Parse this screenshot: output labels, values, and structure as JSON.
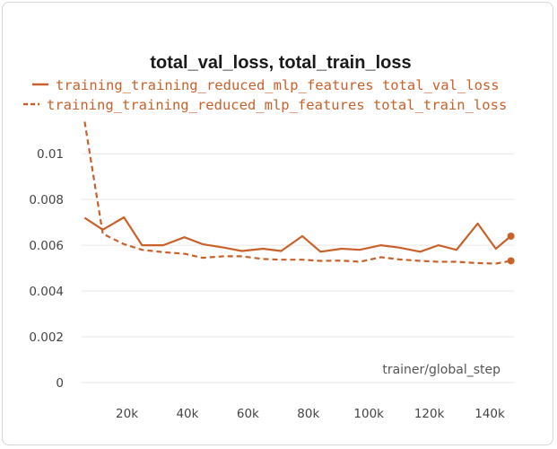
{
  "chart_data": {
    "type": "line",
    "title": "total_val_loss, total_train_loss",
    "xlabel": "trainer/global_step",
    "ylabel": "",
    "xlim": [
      5000,
      148000
    ],
    "ylim": [
      0,
      0.0115
    ],
    "x_ticks": [
      20000,
      40000,
      60000,
      80000,
      100000,
      120000,
      140000
    ],
    "x_tick_labels": [
      "20k",
      "40k",
      "60k",
      "80k",
      "100k",
      "120k",
      "140k"
    ],
    "y_ticks": [
      0,
      0.002,
      0.004,
      0.006,
      0.008,
      0.01
    ],
    "y_tick_labels": [
      "0",
      "0.002",
      "0.004",
      "0.006",
      "0.008",
      "0.01"
    ],
    "grid": true,
    "legend_position": "top",
    "series": [
      {
        "name": "training_training_reduced_mlp_features total_val_loss",
        "style": "solid",
        "color": "#c9612a",
        "x": [
          6000,
          12000,
          19000,
          25000,
          32000,
          39000,
          45000,
          52000,
          58000,
          65000,
          71000,
          78000,
          84000,
          91000,
          97000,
          104000,
          110000,
          117000,
          123000,
          129000,
          136000,
          142000,
          147000
        ],
        "y": [
          0.0072,
          0.00668,
          0.00722,
          0.006,
          0.006,
          0.00635,
          0.00605,
          0.0059,
          0.00575,
          0.00585,
          0.00575,
          0.0064,
          0.00572,
          0.00585,
          0.0058,
          0.006,
          0.0059,
          0.00572,
          0.006,
          0.0058,
          0.00695,
          0.00585,
          0.0064
        ]
      },
      {
        "name": "training_training_reduced_mlp_features total_train_loss",
        "style": "dashed",
        "color": "#c9612a",
        "x": [
          6000,
          12000,
          19000,
          25000,
          32000,
          39000,
          45000,
          52000,
          58000,
          65000,
          71000,
          78000,
          84000,
          91000,
          97000,
          104000,
          110000,
          117000,
          123000,
          129000,
          136000,
          142000,
          147000
        ],
        "y": [
          0.0114,
          0.0065,
          0.00605,
          0.0058,
          0.0057,
          0.00563,
          0.00545,
          0.00552,
          0.00552,
          0.0054,
          0.00537,
          0.00537,
          0.00532,
          0.00533,
          0.00528,
          0.00548,
          0.00538,
          0.00532,
          0.00528,
          0.00528,
          0.00522,
          0.0052,
          0.00532
        ]
      }
    ]
  }
}
